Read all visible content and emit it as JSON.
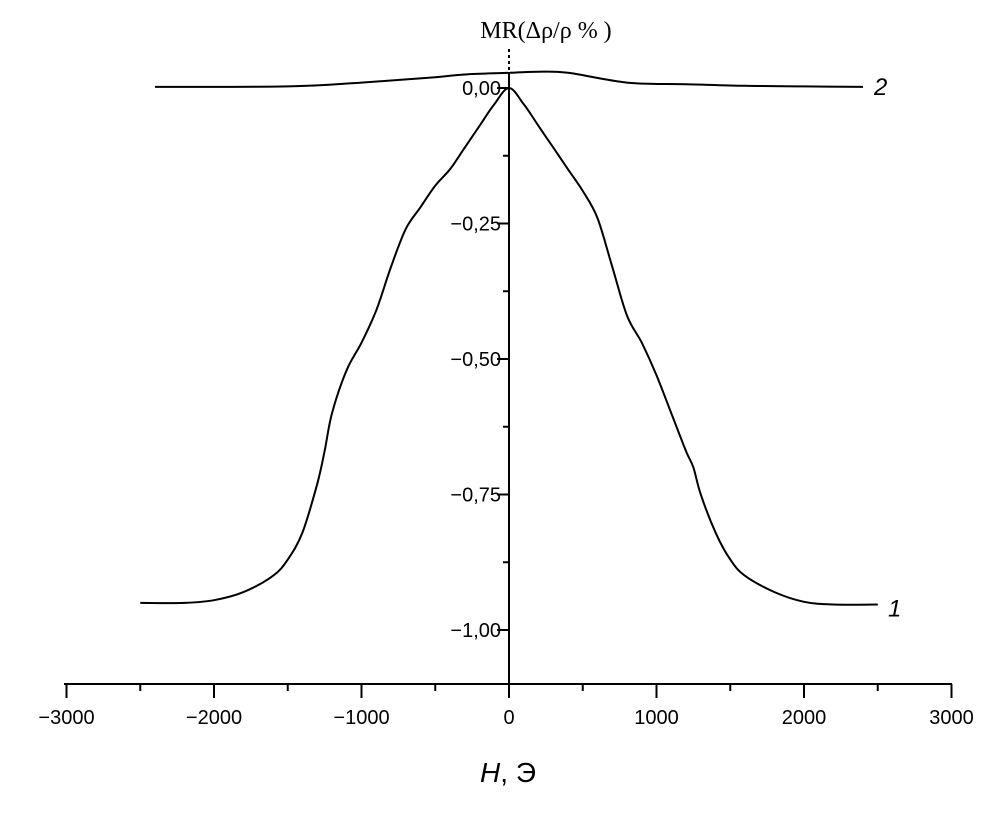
{
  "chart_data": {
    "type": "line",
    "title": "",
    "xlabel_italic": "H",
    "xlabel_rest": ", Э",
    "ylabel": "MR(Δρ/ρ % )",
    "xlim": [
      -3000,
      3000
    ],
    "ylim": [
      -1.1,
      0.05
    ],
    "x_ticks": [
      -3000,
      -2000,
      -1000,
      0,
      1000,
      2000,
      3000
    ],
    "x_tick_labels": [
      "−3000",
      "−2000",
      "−1000",
      "0",
      "1000",
      "2000",
      "3000"
    ],
    "y_ticks": [
      0.0,
      -0.25,
      -0.5,
      -0.75,
      -1.0
    ],
    "y_tick_labels": [
      "0,00",
      "−0,25",
      "−0,50",
      "−0,75",
      "−1,00"
    ],
    "series": [
      {
        "name": "1",
        "x": [
          -2500,
          -2200,
          -2000,
          -1800,
          -1600,
          -1500,
          -1400,
          -1300,
          -1250,
          -1200,
          -1100,
          -1000,
          -900,
          -800,
          -700,
          -600,
          -500,
          -400,
          -300,
          -200,
          -100,
          0,
          100,
          200,
          300,
          400,
          500,
          600,
          700,
          800,
          900,
          1000,
          1100,
          1200,
          1250,
          1300,
          1400,
          1500,
          1600,
          1800,
          2000,
          2200,
          2500
        ],
        "y": [
          -0.95,
          -0.95,
          -0.945,
          -0.93,
          -0.9,
          -0.87,
          -0.82,
          -0.73,
          -0.67,
          -0.6,
          -0.52,
          -0.47,
          -0.41,
          -0.33,
          -0.26,
          -0.22,
          -0.18,
          -0.15,
          -0.11,
          -0.07,
          -0.03,
          0.0,
          -0.03,
          -0.07,
          -0.11,
          -0.15,
          -0.19,
          -0.24,
          -0.33,
          -0.42,
          -0.47,
          -0.53,
          -0.6,
          -0.67,
          -0.7,
          -0.75,
          -0.82,
          -0.87,
          -0.9,
          -0.93,
          -0.948,
          -0.953,
          -0.953
        ]
      },
      {
        "name": "2",
        "x": [
          -2400,
          -1500,
          -1000,
          -500,
          -300,
          0,
          200,
          400,
          800,
          1200,
          1600,
          2000,
          2400
        ],
        "y": [
          0.002,
          0.003,
          0.01,
          0.02,
          0.025,
          0.028,
          0.03,
          0.028,
          0.01,
          0.007,
          0.004,
          0.003,
          0.002
        ]
      }
    ],
    "curve_labels": [
      "2",
      "1"
    ],
    "grid": false,
    "legend": "none"
  }
}
